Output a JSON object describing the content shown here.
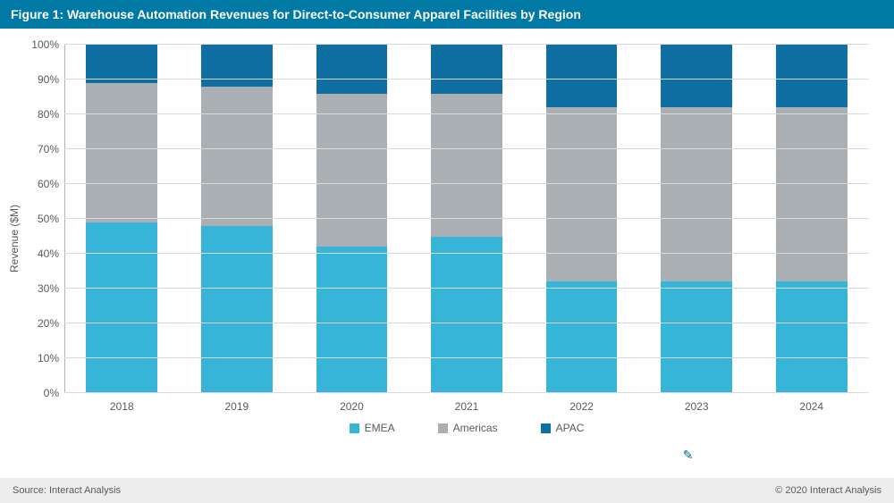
{
  "title_bar": {
    "text": "Figure 1: Warehouse Automation Revenues for Direct-to-Consumer Apparel Facilities by Region",
    "bg_color": "#0079a5",
    "text_color": "#ffffff",
    "fontsize": 14
  },
  "chart": {
    "type": "stacked_bar_100pct",
    "y_axis": {
      "label": "Revenue ($M)",
      "ticks": [
        0,
        10,
        20,
        30,
        40,
        50,
        60,
        70,
        80,
        90,
        100
      ],
      "tick_suffix": "%",
      "min": 0,
      "max": 100,
      "grid_color": "#d9d9d9",
      "label_fontsize": 12,
      "tick_fontsize": 12,
      "tick_color": "#5a5a5a"
    },
    "categories": [
      "2018",
      "2019",
      "2020",
      "2021",
      "2022",
      "2023",
      "2024"
    ],
    "series": [
      {
        "name": "EMEA",
        "color": "#36b5d8",
        "values": [
          49,
          48,
          42,
          45,
          32,
          32,
          32
        ]
      },
      {
        "name": "Americas",
        "color": "#a9afb3",
        "values": [
          40,
          40,
          44,
          41,
          50,
          50,
          50
        ]
      },
      {
        "name": "APAC",
        "color": "#0f6fa3",
        "values": [
          11,
          12,
          14,
          14,
          18,
          18,
          18
        ]
      }
    ],
    "bar_width_pct": 62,
    "background_color": "#ffffff",
    "axis_line_color": "#b0b0b0"
  },
  "legend": {
    "items": [
      {
        "label": "EMEA",
        "color": "#36b5d8"
      },
      {
        "label": "Americas",
        "color": "#a9afb3"
      },
      {
        "label": "APAC",
        "color": "#0f6fa3"
      }
    ],
    "fontsize": 12
  },
  "footer": {
    "source_label": "Source: Interact Analysis",
    "copyright": "© 2020 Interact Analysis",
    "bg_color": "#ededed",
    "fontsize": 11,
    "text_color": "#5a5a5a"
  },
  "watermark": {
    "text": "Interact Analysis",
    "icon_glyph": "✎"
  }
}
